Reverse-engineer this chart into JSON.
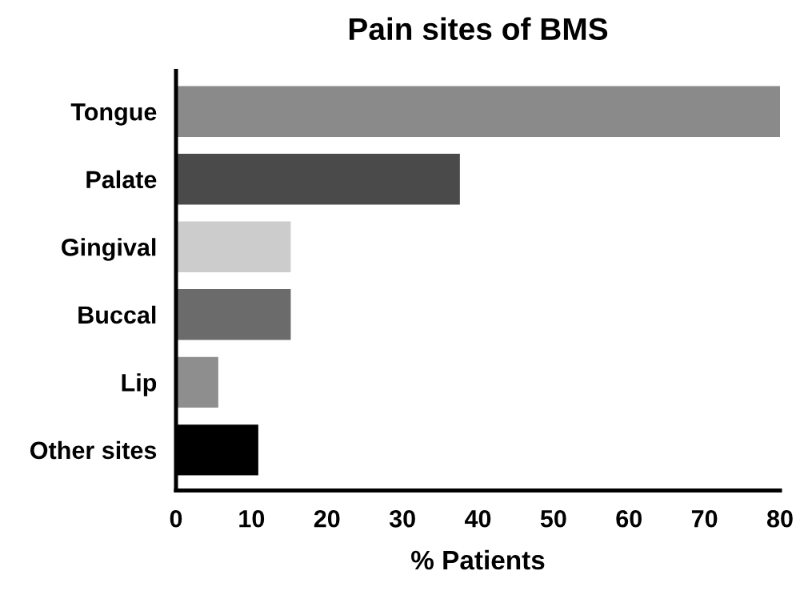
{
  "chart_data": {
    "type": "bar",
    "orientation": "horizontal",
    "title": "Pain sites of BMS",
    "xlabel": "% Patients",
    "categories": [
      "Tongue",
      "Palate",
      "Gingival",
      "Buccal",
      "Lip",
      "Other sites"
    ],
    "values": [
      80,
      37.6,
      15.2,
      15.2,
      5.6,
      10.9
    ],
    "colors": [
      "#8a8a8a",
      "#4a4a4a",
      "#cccccc",
      "#6b6b6b",
      "#8e8e8e",
      "#000000"
    ],
    "xlim": [
      0,
      80
    ],
    "xticks": [
      0,
      10,
      20,
      30,
      40,
      50,
      60,
      70,
      80
    ],
    "grid": false,
    "legend": false
  }
}
